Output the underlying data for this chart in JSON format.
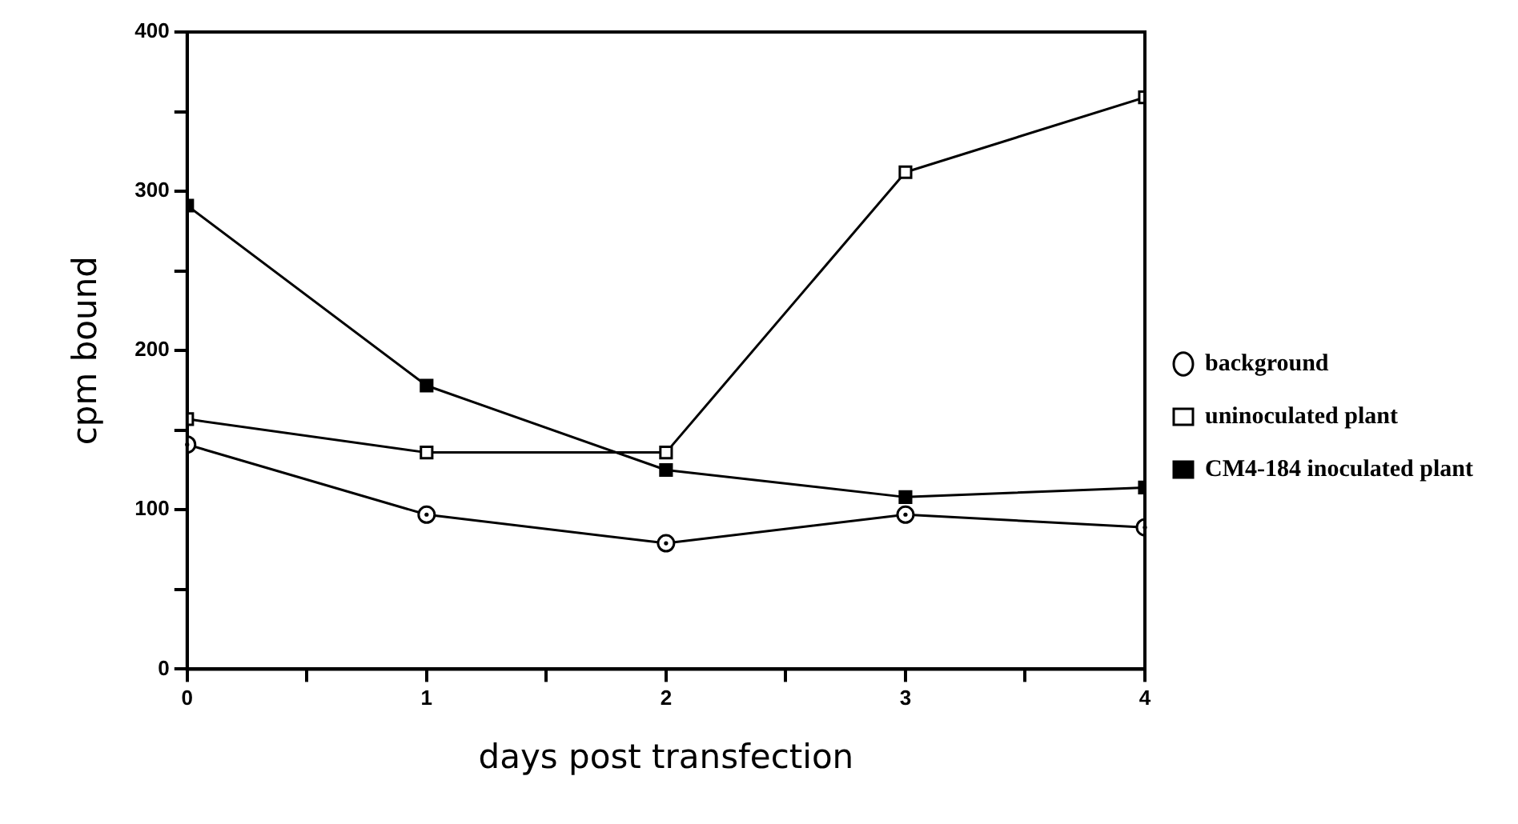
{
  "chart_data": {
    "type": "line",
    "xlabel": "days post transfection",
    "ylabel": "cpm bound",
    "x": [
      0,
      1,
      2,
      3,
      4
    ],
    "series": [
      {
        "name": "background",
        "color": "#000000",
        "marker": "circle",
        "values": [
          141,
          97,
          79,
          97,
          89
        ]
      },
      {
        "name": "uninoculated plant",
        "color": "#000000",
        "marker": "square",
        "values": [
          157,
          136,
          136,
          312,
          359
        ]
      },
      {
        "name": "CM4-184 inoculated plant",
        "color": "#000000",
        "marker": "square",
        "colors": [
          "#000000",
          "#000000",
          "#000000",
          "#000000",
          "#000000"
        ],
        "values": [
          291,
          178,
          125,
          108,
          114
        ]
      }
    ],
    "xlim": [
      0,
      4
    ],
    "xticks": [
      0,
      {
        "value": 0.5,
        "label": null
      },
      1,
      {
        "value": 1.5,
        "label": null
      },
      2,
      {
        "value": 2.5,
        "label": null
      },
      3,
      {
        "value": 3.5,
        "label": null
      },
      4
    ],
    "ylim": [
      0,
      400
    ],
    "yticks": [
      0,
      {
        "value": 50,
        "label": null
      },
      100,
      {
        "value": 150,
        "label": null
      },
      200,
      {
        "value": 250,
        "label": null
      },
      300,
      {
        "value": 350,
        "label": null
      },
      400
    ],
    "grid": false,
    "legend": "right",
    "line_style": "solid"
  }
}
